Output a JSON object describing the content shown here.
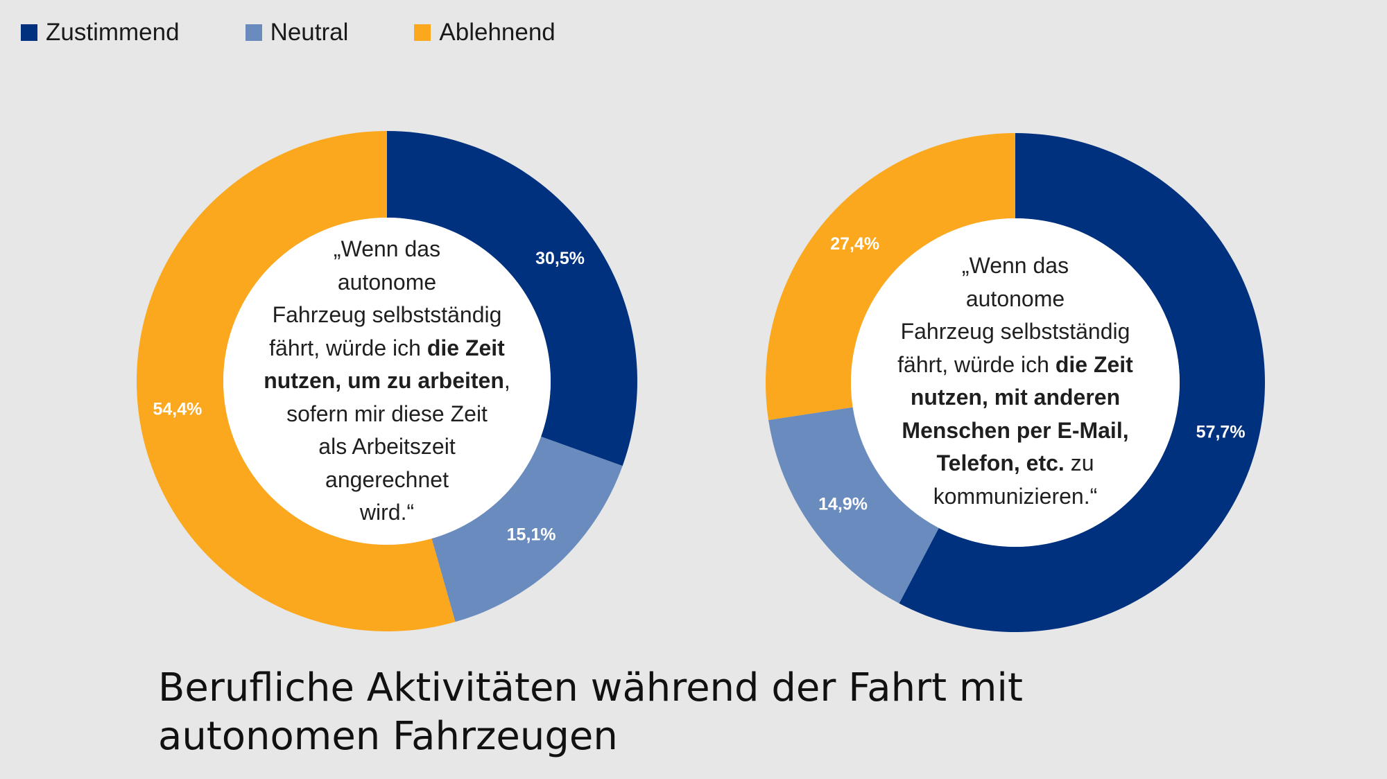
{
  "legend": [
    {
      "label": "Zustimmend",
      "color": "#00317f"
    },
    {
      "label": "Neutral",
      "color": "#6a8bbd"
    },
    {
      "label": "Ablehnend",
      "color": "#fba81f"
    }
  ],
  "title": {
    "line1": "Berufliche Aktivitäten während der Fahrt mit",
    "line2": "autonomen Fahrzeugen"
  },
  "chart_data": [
    {
      "type": "pie",
      "donut": true,
      "categories": [
        "Zustimmend",
        "Neutral",
        "Ablehnend"
      ],
      "values": [
        30.5,
        15.1,
        54.4
      ],
      "labels": [
        "30,5%",
        "15,1%",
        "54,4%"
      ],
      "colors": [
        "#00317f",
        "#6a8bbd",
        "#fba81f"
      ],
      "center_text": [
        {
          "text": "„Wenn das",
          "bold": false
        },
        {
          "text": "autonome",
          "bold": false
        },
        {
          "text": "Fahrzeug selbstständig",
          "bold": false
        },
        {
          "text": "fährt, würde ich |die Zeit",
          "bold": "mixed"
        },
        {
          "text": "|nutzen, um zu arbeiten|,",
          "bold": "mixed"
        },
        {
          "text": "sofern mir diese Zeit",
          "bold": false
        },
        {
          "text": "als Arbeitszeit",
          "bold": false
        },
        {
          "text": "angerechnet",
          "bold": false
        },
        {
          "text": "wird.“",
          "bold": false
        }
      ]
    },
    {
      "type": "pie",
      "donut": true,
      "categories": [
        "Zustimmend",
        "Neutral",
        "Ablehnend"
      ],
      "values": [
        57.7,
        14.9,
        27.4
      ],
      "labels": [
        "57,7%",
        "14,9%",
        "27,4%"
      ],
      "colors": [
        "#00317f",
        "#6a8bbd",
        "#fba81f"
      ],
      "center_text": [
        {
          "text": "„Wenn das",
          "bold": false
        },
        {
          "text": "autonome",
          "bold": false
        },
        {
          "text": "Fahrzeug selbstständig",
          "bold": false
        },
        {
          "text": "fährt, würde ich |die Zeit",
          "bold": "mixed"
        },
        {
          "text": "|nutzen, mit anderen",
          "bold": "mixed"
        },
        {
          "text": "|Menschen per E-Mail,",
          "bold": "mixed"
        },
        {
          "text": "|Telefon, etc.| zu",
          "bold": "mixed"
        },
        {
          "text": "kommunizieren.“",
          "bold": false
        }
      ]
    }
  ]
}
